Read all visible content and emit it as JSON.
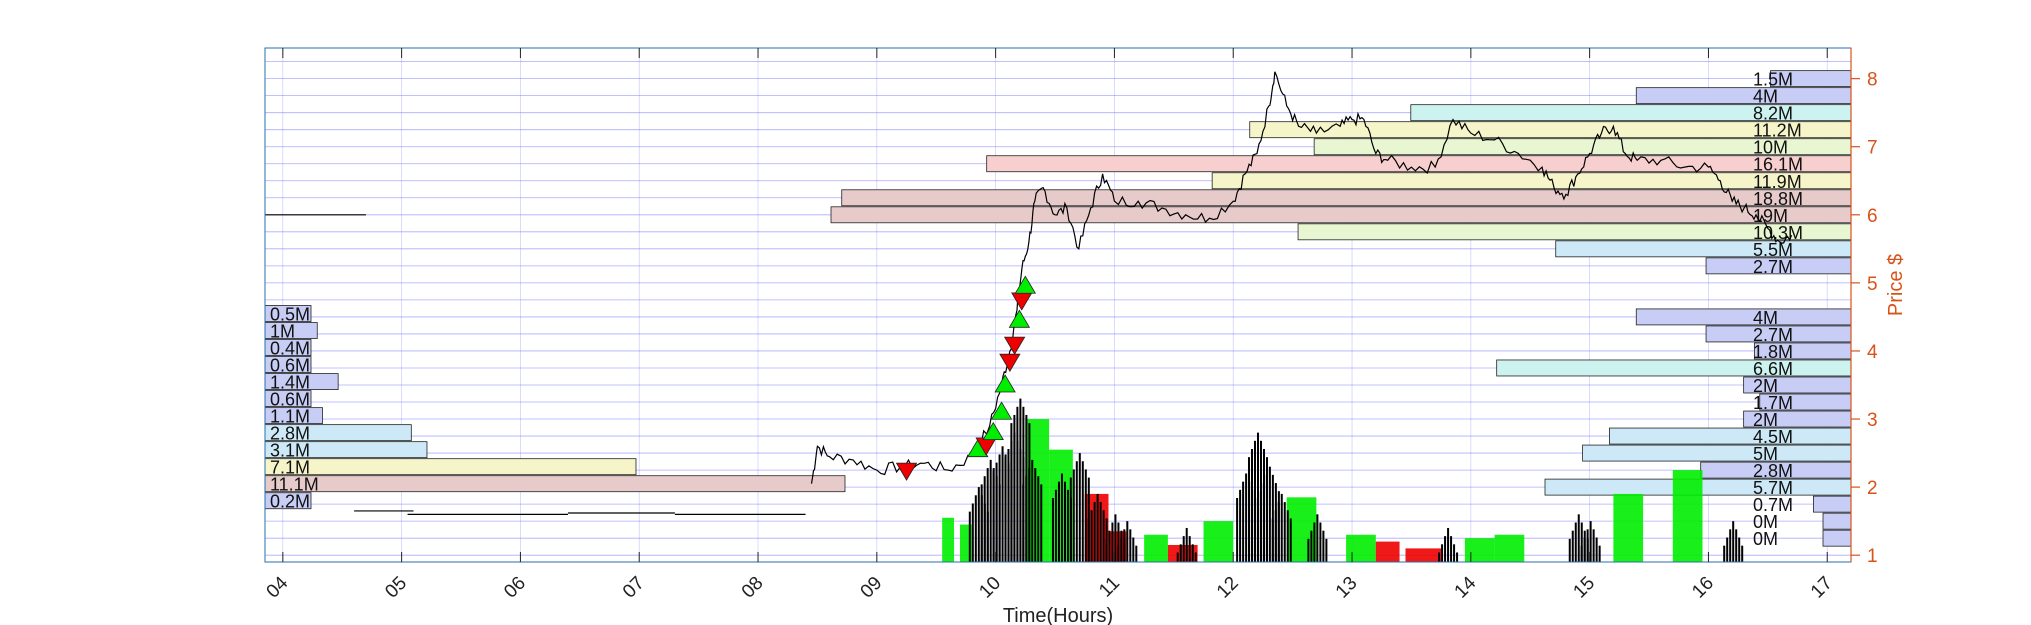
{
  "chart_data": {
    "type": "line",
    "title": "",
    "xlabel": "Time(Hours)",
    "ylabel": "Price $",
    "xlim": [
      3.85,
      17.2
    ],
    "ylim": [
      0.9,
      8.45
    ],
    "x_ticks": [
      "04",
      "05",
      "06",
      "07",
      "08",
      "09",
      "10",
      "11",
      "12",
      "13",
      "14",
      "15",
      "16",
      "17"
    ],
    "y_ticks": [
      "1",
      "2",
      "3",
      "4",
      "5",
      "6",
      "7",
      "8"
    ],
    "grid": true,
    "legend": "none",
    "colors": {
      "axis": "#2a6fa8",
      "price_axis": "#d95319",
      "grid": "#6a6aff",
      "line": "#000000",
      "buy_marker": "#00ee00",
      "sell_marker": "#ee0000"
    },
    "price_series": [
      [
        8.45,
        2.05
      ],
      [
        8.5,
        2.6
      ],
      [
        8.6,
        2.45
      ],
      [
        8.8,
        2.4
      ],
      [
        9.0,
        2.25
      ],
      [
        9.2,
        2.3
      ],
      [
        9.4,
        2.35
      ],
      [
        9.6,
        2.25
      ],
      [
        9.8,
        2.45
      ],
      [
        9.95,
        2.9
      ],
      [
        10.05,
        3.5
      ],
      [
        10.12,
        4.0
      ],
      [
        10.18,
        4.6
      ],
      [
        10.22,
        5.2
      ],
      [
        10.28,
        5.6
      ],
      [
        10.33,
        6.2
      ],
      [
        10.4,
        6.4
      ],
      [
        10.5,
        6.0
      ],
      [
        10.6,
        6.1
      ],
      [
        10.7,
        5.5
      ],
      [
        10.8,
        6.1
      ],
      [
        10.9,
        6.6
      ],
      [
        11.0,
        6.2
      ],
      [
        11.2,
        6.2
      ],
      [
        11.4,
        6.1
      ],
      [
        11.6,
        6.0
      ],
      [
        11.8,
        5.95
      ],
      [
        12.0,
        6.2
      ],
      [
        12.1,
        6.6
      ],
      [
        12.2,
        6.9
      ],
      [
        12.3,
        7.6
      ],
      [
        12.35,
        8.1
      ],
      [
        12.45,
        7.6
      ],
      [
        12.55,
        7.3
      ],
      [
        12.7,
        7.2
      ],
      [
        12.9,
        7.3
      ],
      [
        13.0,
        7.4
      ],
      [
        13.1,
        7.4
      ],
      [
        13.2,
        6.9
      ],
      [
        13.3,
        6.8
      ],
      [
        13.5,
        6.7
      ],
      [
        13.7,
        6.7
      ],
      [
        13.85,
        7.4
      ],
      [
        14.0,
        7.2
      ],
      [
        14.2,
        7.1
      ],
      [
        14.4,
        6.9
      ],
      [
        14.6,
        6.7
      ],
      [
        14.7,
        6.4
      ],
      [
        14.8,
        6.3
      ],
      [
        14.9,
        6.6
      ],
      [
        15.0,
        6.9
      ],
      [
        15.1,
        7.2
      ],
      [
        15.2,
        7.3
      ],
      [
        15.3,
        6.9
      ],
      [
        15.4,
        6.8
      ],
      [
        15.6,
        6.8
      ],
      [
        15.8,
        6.7
      ],
      [
        16.0,
        6.7
      ],
      [
        16.1,
        6.5
      ],
      [
        16.2,
        6.2
      ],
      [
        16.3,
        6.1
      ],
      [
        16.4,
        6.0
      ],
      [
        16.5,
        5.8
      ],
      [
        16.6,
        5.6
      ],
      [
        16.7,
        5.7
      ]
    ],
    "early_price_segments": [
      {
        "x": [
          3.85,
          4.7
        ],
        "y": 6.0
      },
      {
        "x": [
          4.6,
          5.1
        ],
        "y": 1.65
      },
      {
        "x": [
          5.05,
          6.4
        ],
        "y": 1.6
      },
      {
        "x": [
          6.4,
          7.3
        ],
        "y": 1.62
      },
      {
        "x": [
          7.3,
          8.4
        ],
        "y": 1.6
      }
    ],
    "volume_profile_right": [
      {
        "price": 8.0,
        "label": "1.5M",
        "color": "#c7cdf5"
      },
      {
        "price": 7.75,
        "label": "4M",
        "color": "#c7cdf5"
      },
      {
        "price": 7.5,
        "label": "8.2M",
        "color": "#cdf3f0"
      },
      {
        "price": 7.25,
        "label": "11.2M",
        "color": "#f5f5c9"
      },
      {
        "price": 7.0,
        "label": "10M",
        "color": "#e8f7d2"
      },
      {
        "price": 6.75,
        "label": "16.1M",
        "color": "#f7cfcf"
      },
      {
        "price": 6.5,
        "label": "11.9M",
        "color": "#f5f5c9"
      },
      {
        "price": 6.25,
        "label": "18.8M",
        "color": "#e7caca"
      },
      {
        "price": 6.0,
        "label": "19M",
        "color": "#e7caca"
      },
      {
        "price": 5.75,
        "label": "10.3M",
        "color": "#e8f7d2"
      },
      {
        "price": 5.5,
        "label": "5.5M",
        "color": "#cde9f7"
      },
      {
        "price": 5.25,
        "label": "2.7M",
        "color": "#c7cdf5"
      },
      {
        "price": 4.5,
        "label": "4M",
        "color": "#c7cdf5"
      },
      {
        "price": 4.25,
        "label": "2.7M",
        "color": "#c7cdf5"
      },
      {
        "price": 4.0,
        "label": "1.8M",
        "color": "#c7cdf5"
      },
      {
        "price": 3.75,
        "label": "6.6M",
        "color": "#cdf3f0"
      },
      {
        "price": 3.5,
        "label": "2M",
        "color": "#c7cdf5"
      },
      {
        "price": 3.25,
        "label": "1.7M",
        "color": "#c7cdf5"
      },
      {
        "price": 3.0,
        "label": "2M",
        "color": "#c7cdf5"
      },
      {
        "price": 2.75,
        "label": "4.5M",
        "color": "#cde9f7"
      },
      {
        "price": 2.5,
        "label": "5M",
        "color": "#cde9f7"
      },
      {
        "price": 2.25,
        "label": "2.8M",
        "color": "#c7cdf5"
      },
      {
        "price": 2.0,
        "label": "5.7M",
        "color": "#cde9f7"
      },
      {
        "price": 1.75,
        "label": "0.7M",
        "color": "#c7cdf5"
      },
      {
        "price": 1.5,
        "label": "0M",
        "color": "#c7cdf5"
      },
      {
        "price": 1.25,
        "label": "0M",
        "color": "#c7cdf5"
      }
    ],
    "volume_profile_left": [
      {
        "price": 4.55,
        "label": "0.5M",
        "color": "#c7cdf5"
      },
      {
        "price": 4.3,
        "label": "1M",
        "color": "#c7cdf5"
      },
      {
        "price": 4.05,
        "label": "0.4M",
        "color": "#c7cdf5"
      },
      {
        "price": 3.8,
        "label": "0.6M",
        "color": "#c7cdf5"
      },
      {
        "price": 3.55,
        "label": "1.4M",
        "color": "#c7cdf5"
      },
      {
        "price": 3.3,
        "label": "0.6M",
        "color": "#c7cdf5"
      },
      {
        "price": 3.05,
        "label": "1.1M",
        "color": "#c7cdf5"
      },
      {
        "price": 2.8,
        "label": "2.8M",
        "color": "#cde9f7"
      },
      {
        "price": 2.55,
        "label": "3.1M",
        "color": "#cde9f7"
      },
      {
        "price": 2.3,
        "label": "7.1M",
        "color": "#f5f5c9"
      },
      {
        "price": 2.05,
        "label": "11.1M",
        "color": "#e7caca"
      },
      {
        "price": 1.8,
        "label": "0.2M",
        "color": "#c7cdf5"
      }
    ],
    "trade_markers": [
      {
        "x": 9.25,
        "y": 2.25,
        "side": "sell"
      },
      {
        "x": 9.85,
        "y": 2.55,
        "side": "buy"
      },
      {
        "x": 9.92,
        "y": 2.62,
        "side": "sell"
      },
      {
        "x": 9.98,
        "y": 2.8,
        "side": "buy"
      },
      {
        "x": 10.05,
        "y": 3.1,
        "side": "buy"
      },
      {
        "x": 10.08,
        "y": 3.5,
        "side": "buy"
      },
      {
        "x": 10.12,
        "y": 3.85,
        "side": "sell"
      },
      {
        "x": 10.16,
        "y": 4.1,
        "side": "sell"
      },
      {
        "x": 10.2,
        "y": 4.45,
        "side": "buy"
      },
      {
        "x": 10.22,
        "y": 4.75,
        "side": "sell"
      },
      {
        "x": 10.25,
        "y": 4.95,
        "side": "buy"
      }
    ],
    "volume_blocks": [
      {
        "x": 9.55,
        "w": 0.1,
        "top": 1.55,
        "color": "#00ee00"
      },
      {
        "x": 9.7,
        "w": 0.1,
        "top": 1.45,
        "color": "#00ee00"
      },
      {
        "x": 10.25,
        "w": 0.2,
        "top": 3.0,
        "color": "#00ee00"
      },
      {
        "x": 10.45,
        "w": 0.2,
        "top": 2.55,
        "color": "#00ee00"
      },
      {
        "x": 10.75,
        "w": 0.2,
        "top": 1.9,
        "color": "#ee0000"
      },
      {
        "x": 10.95,
        "w": 0.15,
        "top": 1.35,
        "color": "#ee0000"
      },
      {
        "x": 11.25,
        "w": 0.2,
        "top": 1.3,
        "color": "#00ee00"
      },
      {
        "x": 11.45,
        "w": 0.25,
        "top": 1.15,
        "color": "#ee0000"
      },
      {
        "x": 11.75,
        "w": 0.25,
        "top": 1.5,
        "color": "#00ee00"
      },
      {
        "x": 12.45,
        "w": 0.25,
        "top": 1.85,
        "color": "#00ee00"
      },
      {
        "x": 12.95,
        "w": 0.25,
        "top": 1.3,
        "color": "#00ee00"
      },
      {
        "x": 13.2,
        "w": 0.2,
        "top": 1.2,
        "color": "#ee0000"
      },
      {
        "x": 13.45,
        "w": 0.3,
        "top": 1.1,
        "color": "#ee0000"
      },
      {
        "x": 13.95,
        "w": 0.25,
        "top": 1.25,
        "color": "#00ee00"
      },
      {
        "x": 14.2,
        "w": 0.25,
        "top": 1.3,
        "color": "#00ee00"
      },
      {
        "x": 15.2,
        "w": 0.25,
        "top": 1.9,
        "color": "#00ee00"
      },
      {
        "x": 15.7,
        "w": 0.25,
        "top": 2.25,
        "color": "#00ee00"
      }
    ],
    "volume_spikes": [
      {
        "x": 9.85,
        "top": 2.0
      },
      {
        "x": 9.95,
        "top": 2.4
      },
      {
        "x": 10.05,
        "top": 2.6
      },
      {
        "x": 10.15,
        "top": 2.8
      },
      {
        "x": 10.2,
        "top": 3.3
      },
      {
        "x": 10.3,
        "top": 2.4
      },
      {
        "x": 10.55,
        "top": 2.2
      },
      {
        "x": 10.7,
        "top": 2.5
      },
      {
        "x": 10.85,
        "top": 1.9
      },
      {
        "x": 11.0,
        "top": 1.6
      },
      {
        "x": 11.1,
        "top": 1.5
      },
      {
        "x": 11.6,
        "top": 1.4
      },
      {
        "x": 12.1,
        "top": 2.2
      },
      {
        "x": 12.2,
        "top": 2.8
      },
      {
        "x": 12.3,
        "top": 2.3
      },
      {
        "x": 12.4,
        "top": 1.9
      },
      {
        "x": 12.7,
        "top": 1.6
      },
      {
        "x": 13.8,
        "top": 1.4
      },
      {
        "x": 14.9,
        "top": 1.6
      },
      {
        "x": 15.0,
        "top": 1.5
      },
      {
        "x": 16.2,
        "top": 1.5
      }
    ]
  }
}
